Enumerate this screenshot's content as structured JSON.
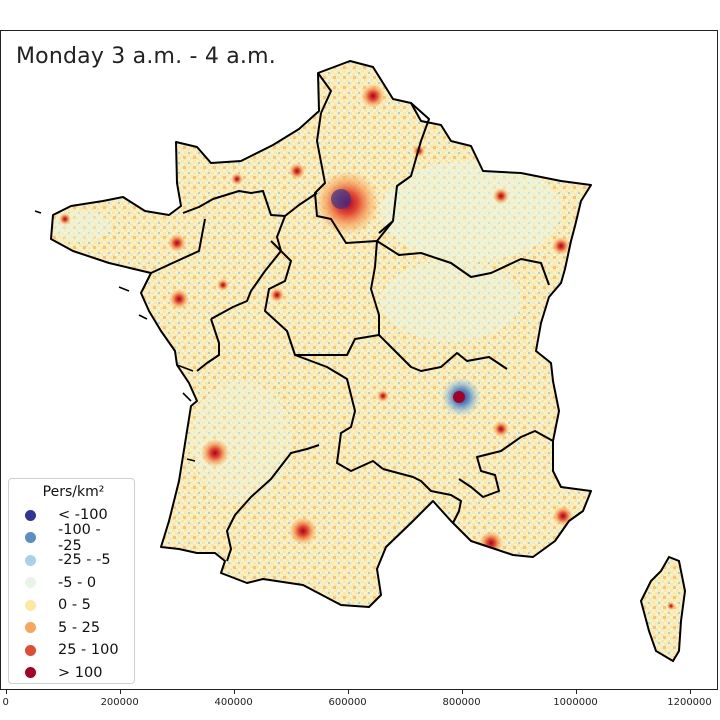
{
  "title": "Monday 3 a.m. - 4 a.m.",
  "legend": {
    "title": "Pers/km²",
    "items": [
      {
        "label": "< -100",
        "color": "#313695"
      },
      {
        "label": "-100 - -25",
        "color": "#5b8ec4"
      },
      {
        "label": "-25 - -5",
        "color": "#a9d1e6"
      },
      {
        "label": "-5 - 0",
        "color": "#e8f5e6"
      },
      {
        "label": "0 - 5",
        "color": "#fde8a1"
      },
      {
        "label": "5 - 25",
        "color": "#f7a65c"
      },
      {
        "label": "25 - 100",
        "color": "#e34b33"
      },
      {
        "label": "> 100",
        "color": "#a50026"
      }
    ]
  },
  "x_axis": {
    "ticks": [
      "0",
      "200000",
      "400000",
      "600000",
      "800000",
      "1000000",
      "1200000"
    ],
    "tick_values": [
      0,
      200000,
      400000,
      600000,
      800000,
      1000000,
      1200000
    ],
    "range": [
      -10000,
      1250000
    ]
  },
  "colors": {
    "boundary": "#000000",
    "background": "#ffffff"
  }
}
